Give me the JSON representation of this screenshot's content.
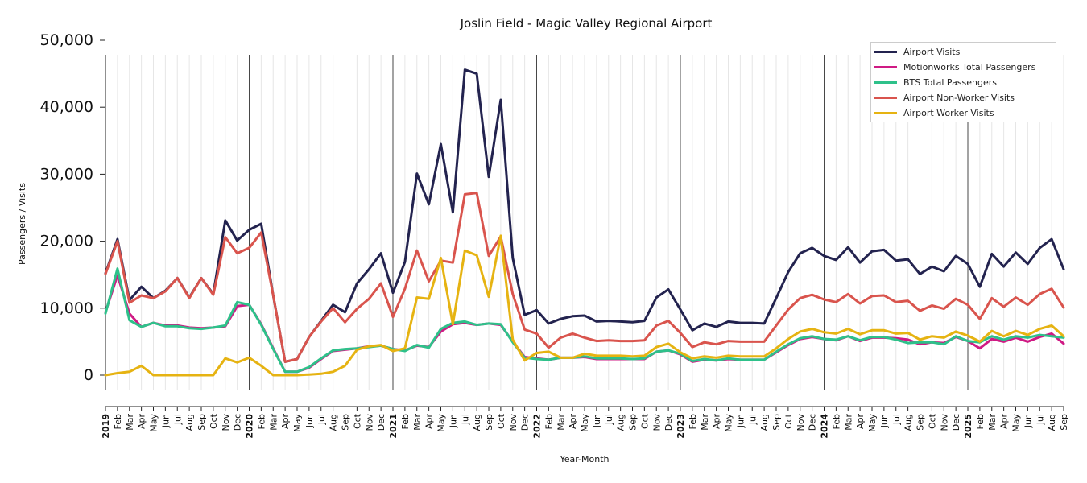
{
  "chart_data": {
    "type": "line",
    "title": "Joslin Field - Magic Valley Regional Airport",
    "xlabel": "Year-Month",
    "ylabel": "Passengers / Visits",
    "ylim": [
      -2500,
      50000
    ],
    "y_ticks": [
      0,
      10000,
      20000,
      30000,
      40000,
      50000
    ],
    "y_tick_labels": [
      "0",
      "10,000",
      "20,000",
      "30,000",
      "40,000",
      "50,000"
    ],
    "grid": "vertical",
    "legend_position": "top-right",
    "x": [
      "2019",
      "Feb",
      "Mar",
      "Apr",
      "May",
      "Jun",
      "Jul",
      "Aug",
      "Sep",
      "Oct",
      "Nov",
      "Dec",
      "2020",
      "Feb",
      "Mar",
      "Apr",
      "May",
      "Jun",
      "Jul",
      "Aug",
      "Sep",
      "Oct",
      "Nov",
      "Dec",
      "2021",
      "Feb",
      "Mar",
      "Apr",
      "May",
      "Jun",
      "Jul",
      "Aug",
      "Sep",
      "Oct",
      "Nov",
      "Dec",
      "2022",
      "Feb",
      "Mar",
      "Apr",
      "May",
      "Jun",
      "Jul",
      "Aug",
      "Sep",
      "Oct",
      "Nov",
      "Dec",
      "2023",
      "Feb",
      "Mar",
      "Apr",
      "May",
      "Jun",
      "Jul",
      "Aug",
      "Sep",
      "Oct",
      "Nov",
      "Dec",
      "2024",
      "Feb",
      "Mar",
      "Apr",
      "May",
      "Jun",
      "Jul",
      "Aug",
      "Sep",
      "Oct",
      "Nov",
      "Dec",
      "2025",
      "Feb",
      "Mar",
      "Apr",
      "May",
      "Jun",
      "Jul",
      "Aug",
      "Sep"
    ],
    "year_markers": [
      "2019",
      "2020",
      "2021",
      "2022",
      "2023",
      "2024",
      "2025"
    ],
    "series": [
      {
        "name": "Airport Visits",
        "color": "#23234f",
        "values": [
          15200,
          20300,
          11200,
          13200,
          11500,
          12600,
          14500,
          11600,
          14500,
          12100,
          23100,
          20100,
          21700,
          22600,
          11900,
          2000,
          2400,
          5700,
          8100,
          10500,
          9400,
          13700,
          15800,
          18200,
          12300,
          16900,
          30100,
          25500,
          34500,
          24300,
          45600,
          45000,
          29600,
          41100,
          17500,
          9000,
          9700,
          7700,
          8400,
          8800,
          8900,
          8000,
          8100,
          8000,
          7900,
          8100,
          11600,
          12800,
          9800,
          6700,
          7700,
          7200,
          8000,
          7800,
          7800,
          7700,
          11500,
          15400,
          18200,
          19000,
          17800,
          17200,
          19100,
          16800,
          18500,
          18700,
          17100,
          17300,
          15100,
          16200,
          15500,
          17800,
          16600,
          13200,
          18100,
          16200,
          18300,
          16600,
          19000,
          20300,
          15800
        ]
      },
      {
        "name": "Motionworks Total Passengers",
        "color": "#cf1a84",
        "values": [
          9400,
          14900,
          9200,
          7200,
          7800,
          7400,
          7400,
          7100,
          7000,
          7100,
          7300,
          10300,
          10500,
          7600,
          4000,
          500,
          500,
          1100,
          2400,
          3600,
          3800,
          4000,
          4300,
          4400,
          3900,
          3700,
          4400,
          4200,
          6500,
          7600,
          7800,
          7500,
          7700,
          7500,
          5000,
          2700,
          2500,
          2300,
          2600,
          2600,
          2700,
          2400,
          2400,
          2400,
          2400,
          2400,
          3500,
          3700,
          3100,
          2000,
          2300,
          2200,
          2400,
          2300,
          2300,
          2300,
          3400,
          4500,
          5400,
          5700,
          5400,
          5200,
          5800,
          5100,
          5600,
          5600,
          5500,
          5300,
          4600,
          4900,
          4800,
          5700,
          5100,
          4000,
          5400,
          5000,
          5600,
          5000,
          5700,
          6200,
          4700
        ]
      },
      {
        "name": "BTS Total Passengers",
        "color": "#2ec18a",
        "values": [
          9200,
          15900,
          8200,
          7200,
          7800,
          7300,
          7300,
          7000,
          6900,
          7100,
          7400,
          10900,
          10500,
          7500,
          3900,
          500,
          500,
          1200,
          2500,
          3700,
          3900,
          4000,
          4200,
          4400,
          3900,
          3600,
          4500,
          4100,
          6900,
          7800,
          8000,
          7500,
          7700,
          7600,
          4900,
          2600,
          2400,
          2300,
          2600,
          2600,
          2800,
          2500,
          2500,
          2500,
          2400,
          2500,
          3500,
          3700,
          3200,
          2100,
          2400,
          2200,
          2500,
          2300,
          2300,
          2300,
          3500,
          4600,
          5500,
          5800,
          5400,
          5300,
          5800,
          5200,
          5700,
          5700,
          5300,
          4800,
          4900,
          4900,
          4600,
          5800,
          5100,
          4900,
          5800,
          5300,
          5800,
          5600,
          6000,
          5800,
          5600
        ]
      },
      {
        "name": "Airport Non-Worker Visits",
        "color": "#d9544d",
        "values": [
          15100,
          20000,
          10800,
          11900,
          11500,
          12500,
          14500,
          11500,
          14500,
          12000,
          20600,
          18200,
          19000,
          21300,
          11900,
          2000,
          2400,
          5700,
          8000,
          10000,
          7900,
          9900,
          11400,
          13700,
          8700,
          12900,
          18600,
          14000,
          17100,
          16800,
          27000,
          27200,
          17800,
          20700,
          12100,
          6800,
          6200,
          4100,
          5600,
          6200,
          5600,
          5100,
          5200,
          5100,
          5100,
          5200,
          7400,
          8100,
          6300,
          4200,
          4900,
          4600,
          5100,
          5000,
          5000,
          5000,
          7400,
          9800,
          11500,
          12000,
          11300,
          10900,
          12100,
          10700,
          11800,
          11900,
          10900,
          11100,
          9600,
          10400,
          9900,
          11400,
          10500,
          8400,
          11500,
          10200,
          11600,
          10500,
          12100,
          12900,
          10100
        ]
      },
      {
        "name": "Airport Worker Visits",
        "color": "#e6b312",
        "values": [
          0,
          300,
          500,
          1400,
          0,
          0,
          0,
          0,
          0,
          0,
          2500,
          1900,
          2600,
          1400,
          0,
          0,
          0,
          100,
          200,
          500,
          1400,
          3800,
          4300,
          4500,
          3600,
          4000,
          11600,
          11400,
          17500,
          7600,
          18600,
          17900,
          11700,
          20800,
          5300,
          2200,
          3300,
          3500,
          2600,
          2600,
          3200,
          2900,
          2900,
          2900,
          2800,
          2900,
          4200,
          4700,
          3400,
          2500,
          2800,
          2600,
          2900,
          2800,
          2800,
          2800,
          4000,
          5400,
          6500,
          6900,
          6400,
          6200,
          6900,
          6100,
          6700,
          6700,
          6200,
          6300,
          5300,
          5800,
          5600,
          6500,
          5900,
          5000,
          6600,
          5800,
          6600,
          6000,
          6900,
          7400,
          5800
        ]
      }
    ]
  }
}
